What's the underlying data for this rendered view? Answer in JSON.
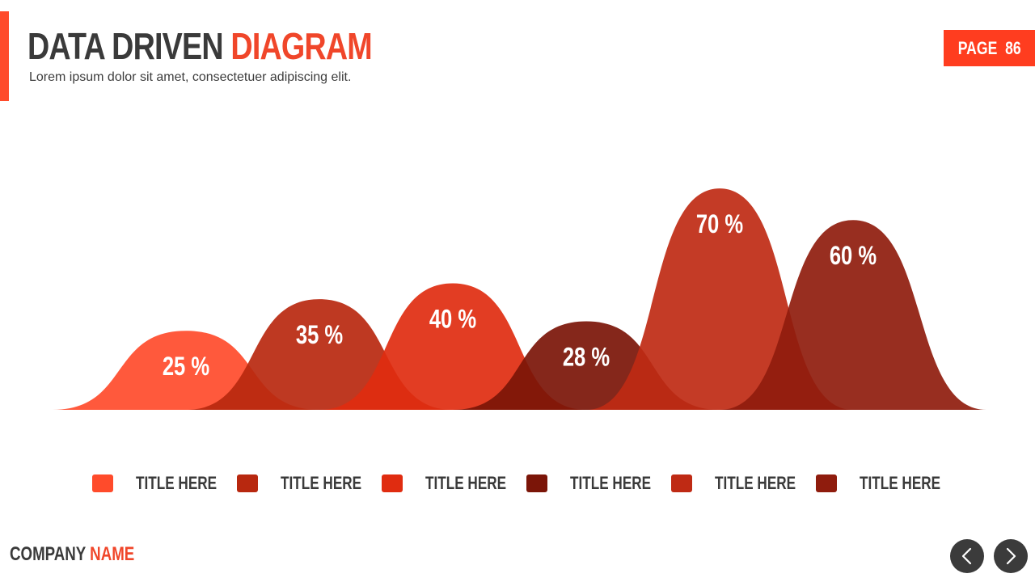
{
  "header": {
    "title_part1": "DATA DRIVEN",
    "title_part2": "DIAGRAM",
    "subtitle": "Lorem ipsum dolor sit amet, consectetuer adipiscing elit.",
    "page_label": "PAGE",
    "page_number": "86"
  },
  "footer": {
    "company_part1": "COMPANY",
    "company_part2": "NAME",
    "prev_icon": "chevron-left-icon",
    "next_icon": "chevron-right-icon"
  },
  "colors": {
    "accent": "#ff4b2b",
    "title_dark": "#3a3a3a",
    "nav_button": "#3b3b3b"
  },
  "chart_data": {
    "type": "area",
    "title": "",
    "xlabel": "",
    "ylabel": "",
    "ylim": [
      0,
      80
    ],
    "grid": false,
    "legend_placement": "bottom",
    "series": [
      {
        "name": "TITLE HERE",
        "value": 25,
        "label": "25 %",
        "color": "#ff4b2b"
      },
      {
        "name": "TITLE HERE",
        "value": 35,
        "label": "35 %",
        "color": "#b8280f"
      },
      {
        "name": "TITLE HERE",
        "value": 40,
        "label": "40 %",
        "color": "#e02c10"
      },
      {
        "name": "TITLE HERE",
        "value": 28,
        "label": "28 %",
        "color": "#7b1508"
      },
      {
        "name": "TITLE HERE",
        "value": 70,
        "label": "70 %",
        "color": "#bf2a14"
      },
      {
        "name": "TITLE HERE",
        "value": 60,
        "label": "60 %",
        "color": "#8f1c0d"
      }
    ]
  }
}
